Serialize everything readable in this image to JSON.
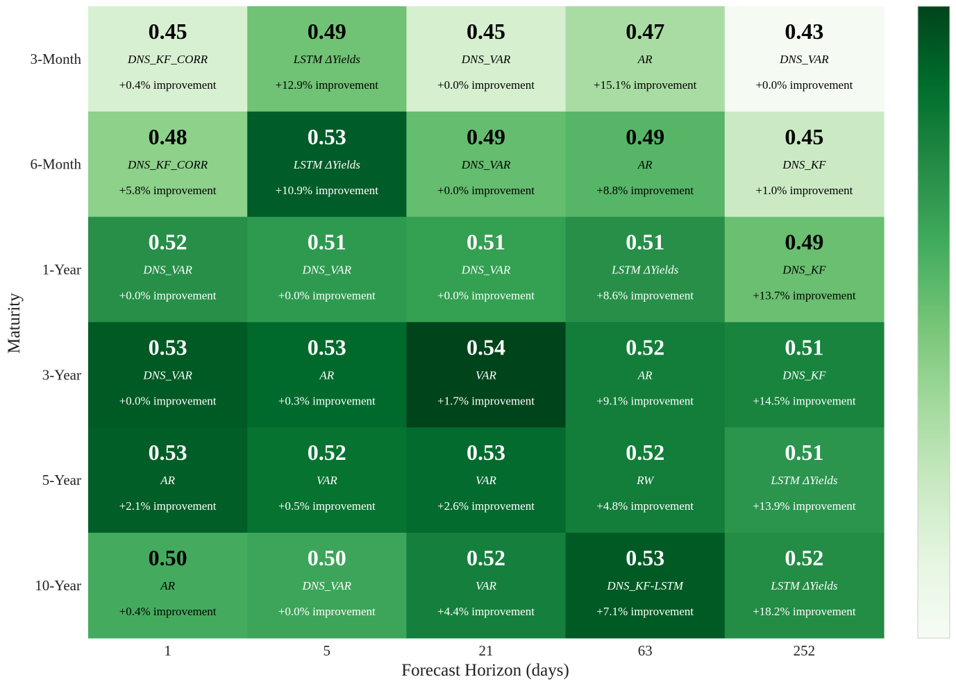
{
  "chart_data": {
    "type": "heatmap",
    "xlabel": "Forecast Horizon (days)",
    "ylabel": "Maturity",
    "x_categories": [
      "1",
      "5",
      "21",
      "63",
      "252"
    ],
    "y_categories": [
      "3-Month",
      "6-Month",
      "1-Year",
      "3-Year",
      "5-Year",
      "10-Year"
    ],
    "values": [
      [
        0.45,
        0.49,
        0.45,
        0.47,
        0.43
      ],
      [
        0.48,
        0.53,
        0.49,
        0.49,
        0.45
      ],
      [
        0.52,
        0.51,
        0.51,
        0.51,
        0.49
      ],
      [
        0.53,
        0.53,
        0.54,
        0.52,
        0.51
      ],
      [
        0.53,
        0.52,
        0.53,
        0.52,
        0.51
      ],
      [
        0.5,
        0.5,
        0.52,
        0.53,
        0.52
      ]
    ],
    "value_labels": [
      [
        "0.45",
        "0.49",
        "0.45",
        "0.47",
        "0.43"
      ],
      [
        "0.48",
        "0.53",
        "0.49",
        "0.49",
        "0.45"
      ],
      [
        "0.52",
        "0.51",
        "0.51",
        "0.51",
        "0.49"
      ],
      [
        "0.53",
        "0.53",
        "0.54",
        "0.52",
        "0.51"
      ],
      [
        "0.53",
        "0.52",
        "0.53",
        "0.52",
        "0.51"
      ],
      [
        "0.50",
        "0.50",
        "0.52",
        "0.53",
        "0.52"
      ]
    ],
    "models": [
      [
        "DNS_KF_CORR",
        "LSTM ΔYields",
        "DNS_VAR",
        "AR",
        "DNS_VAR"
      ],
      [
        "DNS_KF_CORR",
        "LSTM ΔYields",
        "DNS_VAR",
        "AR",
        "DNS_KF"
      ],
      [
        "DNS_VAR",
        "DNS_VAR",
        "DNS_VAR",
        "LSTM ΔYields",
        "DNS_KF"
      ],
      [
        "DNS_VAR",
        "AR",
        "VAR",
        "AR",
        "DNS_KF"
      ],
      [
        "AR",
        "VAR",
        "VAR",
        "RW",
        "LSTM ΔYields"
      ],
      [
        "AR",
        "DNS_VAR",
        "VAR",
        "DNS_KF-LSTM",
        "LSTM ΔYields"
      ]
    ],
    "improvements": [
      [
        "+0.4% improvement",
        "+12.9% improvement",
        "+0.0% improvement",
        "+15.1% improvement",
        "+0.0% improvement"
      ],
      [
        "+5.8% improvement",
        "+10.9% improvement",
        "+0.0% improvement",
        "+8.8% improvement",
        "+1.0% improvement"
      ],
      [
        "+0.0% improvement",
        "+0.0% improvement",
        "+0.0% improvement",
        "+8.6% improvement",
        "+13.7% improvement"
      ],
      [
        "+0.0% improvement",
        "+0.3% improvement",
        "+1.7% improvement",
        "+9.1% improvement",
        "+14.5% improvement"
      ],
      [
        "+2.1% improvement",
        "+0.5% improvement",
        "+2.6% improvement",
        "+4.8% improvement",
        "+13.9% improvement"
      ],
      [
        "+0.4% improvement",
        "+0.0% improvement",
        "+4.4% improvement",
        "+7.1% improvement",
        "+18.2% improvement"
      ]
    ],
    "cell_colors": [
      [
        "#d8f0d2",
        "#70c274",
        "#d5efcf",
        "#a9dca2",
        "#f5fbf2"
      ],
      [
        "#8dd18a",
        "#005c28",
        "#65bd6f",
        "#56b567",
        "#cbeac4"
      ],
      [
        "#278f48",
        "#2e9a50",
        "#33a052",
        "#278f48",
        "#6abf71"
      ],
      [
        "#005a24",
        "#006a2c",
        "#00441b",
        "#137e3a",
        "#18843e"
      ],
      [
        "#005e26",
        "#077331",
        "#036b2e",
        "#137d3a",
        "#2b954e"
      ],
      [
        "#44ab5e",
        "#3ca559",
        "#15803d",
        "#005a24",
        "#238c45"
      ]
    ],
    "text_colors": [
      [
        "#000000",
        "#000000",
        "#000000",
        "#000000",
        "#000000"
      ],
      [
        "#000000",
        "#ffffff",
        "#000000",
        "#000000",
        "#000000"
      ],
      [
        "#ffffff",
        "#ffffff",
        "#ffffff",
        "#ffffff",
        "#000000"
      ],
      [
        "#ffffff",
        "#ffffff",
        "#ffffff",
        "#ffffff",
        "#ffffff"
      ],
      [
        "#ffffff",
        "#ffffff",
        "#ffffff",
        "#ffffff",
        "#ffffff"
      ],
      [
        "#000000",
        "#ffffff",
        "#ffffff",
        "#ffffff",
        "#ffffff"
      ]
    ],
    "colormap": "Greens",
    "colorbar": {
      "position": "right",
      "tick_labels_shown": false,
      "color_low": "#f7fcf5",
      "color_high": "#00441b"
    },
    "grid": false
  }
}
